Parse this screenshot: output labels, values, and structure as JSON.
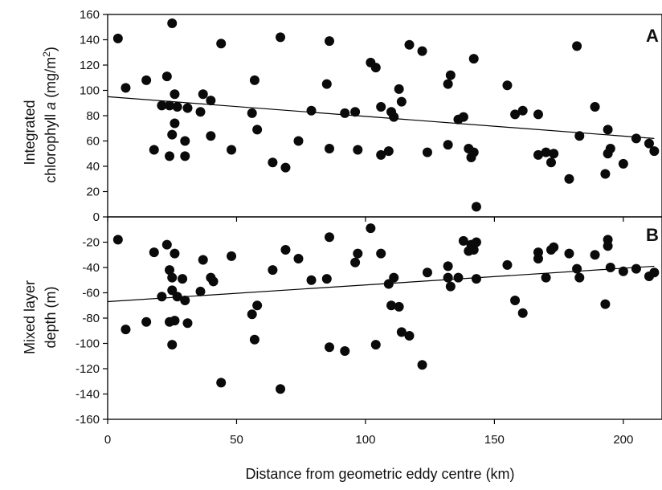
{
  "figure": {
    "xlabel": "Distance from geometric eddy centre (km)"
  },
  "chart_data": [
    {
      "type": "scatter",
      "panel": "A",
      "ylabel_line1": "Integrated",
      "ylabel_line2_prefix": "chlorophyll ",
      "ylabel_line2_italic": "a",
      "ylabel_line2_suffix": " (mg/m",
      "ylabel_superscript": "2",
      "ylabel_close": ")",
      "xlim": [
        0,
        215
      ],
      "ylim": [
        0,
        160
      ],
      "xticks": [
        0,
        50,
        100,
        150,
        200
      ],
      "yticks": [
        0,
        20,
        40,
        60,
        80,
        100,
        120,
        140,
        160
      ],
      "grid": false,
      "trendline": {
        "x": [
          0,
          212
        ],
        "y": [
          95,
          62
        ]
      },
      "points": [
        [
          4,
          141
        ],
        [
          7,
          102
        ],
        [
          15,
          108
        ],
        [
          18,
          53
        ],
        [
          21,
          88
        ],
        [
          23,
          111
        ],
        [
          24,
          48
        ],
        [
          25,
          153
        ],
        [
          24,
          88
        ],
        [
          25,
          65
        ],
        [
          26,
          97
        ],
        [
          26,
          74
        ],
        [
          27,
          87
        ],
        [
          30,
          48
        ],
        [
          30,
          60
        ],
        [
          31,
          86
        ],
        [
          36,
          83
        ],
        [
          37,
          97
        ],
        [
          40,
          92
        ],
        [
          40,
          64
        ],
        [
          44,
          137
        ],
        [
          48,
          53
        ],
        [
          56,
          82
        ],
        [
          57,
          108
        ],
        [
          58,
          69
        ],
        [
          64,
          43
        ],
        [
          67,
          142
        ],
        [
          69,
          39
        ],
        [
          74,
          60
        ],
        [
          79,
          84
        ],
        [
          85,
          105
        ],
        [
          86,
          139
        ],
        [
          86,
          54
        ],
        [
          92,
          82
        ],
        [
          96,
          83
        ],
        [
          97,
          53
        ],
        [
          102,
          122
        ],
        [
          104,
          118
        ],
        [
          106,
          49
        ],
        [
          106,
          87
        ],
        [
          109,
          52
        ],
        [
          110,
          83
        ],
        [
          111,
          79
        ],
        [
          113,
          101
        ],
        [
          114,
          91
        ],
        [
          117,
          136
        ],
        [
          122,
          131
        ],
        [
          124,
          51
        ],
        [
          132,
          57
        ],
        [
          132,
          105
        ],
        [
          133,
          112
        ],
        [
          136,
          77
        ],
        [
          138,
          79
        ],
        [
          140,
          54
        ],
        [
          141,
          47
        ],
        [
          142,
          51
        ],
        [
          142,
          125
        ],
        [
          143,
          8
        ],
        [
          155,
          104
        ],
        [
          158,
          81
        ],
        [
          161,
          84
        ],
        [
          167,
          81
        ],
        [
          167,
          49
        ],
        [
          170,
          51
        ],
        [
          172,
          43
        ],
        [
          173,
          50
        ],
        [
          179,
          30
        ],
        [
          182,
          135
        ],
        [
          183,
          64
        ],
        [
          189,
          87
        ],
        [
          193,
          34
        ],
        [
          194,
          50
        ],
        [
          194,
          69
        ],
        [
          195,
          54
        ],
        [
          200,
          42
        ],
        [
          205,
          62
        ],
        [
          210,
          58
        ],
        [
          212,
          52
        ]
      ]
    },
    {
      "type": "scatter",
      "panel": "B",
      "ylabel_line1": "Mixed layer",
      "ylabel_line2": "depth (m)",
      "xlim": [
        0,
        215
      ],
      "ylim": [
        -160,
        0
      ],
      "xticks": [
        0,
        50,
        100,
        150,
        200
      ],
      "yticks": [
        -160,
        -140,
        -120,
        -100,
        -80,
        -60,
        -40,
        -20
      ],
      "grid": false,
      "trendline": {
        "x": [
          0,
          212
        ],
        "y": [
          -67,
          -39
        ]
      },
      "points": [
        [
          4,
          -18
        ],
        [
          7,
          -89
        ],
        [
          15,
          -83
        ],
        [
          18,
          -28
        ],
        [
          21,
          -63
        ],
        [
          23,
          -22
        ],
        [
          24,
          -42
        ],
        [
          24,
          -83
        ],
        [
          25,
          -101
        ],
        [
          25,
          -58
        ],
        [
          25,
          -48
        ],
        [
          26,
          -29
        ],
        [
          26,
          -82
        ],
        [
          27,
          -63
        ],
        [
          29,
          -49
        ],
        [
          30,
          -66
        ],
        [
          31,
          -84
        ],
        [
          36,
          -59
        ],
        [
          37,
          -34
        ],
        [
          40,
          -48
        ],
        [
          41,
          -51
        ],
        [
          44,
          -131
        ],
        [
          48,
          -31
        ],
        [
          56,
          -77
        ],
        [
          57,
          -97
        ],
        [
          58,
          -70
        ],
        [
          64,
          -42
        ],
        [
          67,
          -136
        ],
        [
          69,
          -26
        ],
        [
          74,
          -33
        ],
        [
          79,
          -50
        ],
        [
          85,
          -49
        ],
        [
          86,
          -16
        ],
        [
          86,
          -103
        ],
        [
          92,
          -106
        ],
        [
          96,
          -36
        ],
        [
          97,
          -29
        ],
        [
          102,
          -9
        ],
        [
          104,
          -101
        ],
        [
          106,
          -29
        ],
        [
          109,
          -53
        ],
        [
          110,
          -70
        ],
        [
          111,
          -48
        ],
        [
          113,
          -71
        ],
        [
          114,
          -91
        ],
        [
          117,
          -94
        ],
        [
          122,
          -117
        ],
        [
          124,
          -44
        ],
        [
          132,
          -39
        ],
        [
          132,
          -48
        ],
        [
          133,
          -55
        ],
        [
          136,
          -48
        ],
        [
          138,
          -19
        ],
        [
          140,
          -27
        ],
        [
          141,
          -22
        ],
        [
          142,
          -26
        ],
        [
          143,
          -49
        ],
        [
          143,
          -20
        ],
        [
          155,
          -38
        ],
        [
          158,
          -66
        ],
        [
          161,
          -76
        ],
        [
          167,
          -28
        ],
        [
          167,
          -33
        ],
        [
          170,
          -48
        ],
        [
          172,
          -26
        ],
        [
          173,
          -24
        ],
        [
          179,
          -29
        ],
        [
          182,
          -41
        ],
        [
          183,
          -48
        ],
        [
          189,
          -30
        ],
        [
          193,
          -69
        ],
        [
          194,
          -18
        ],
        [
          194,
          -23
        ],
        [
          195,
          -40
        ],
        [
          200,
          -43
        ],
        [
          205,
          -41
        ],
        [
          210,
          -47
        ],
        [
          212,
          -44
        ]
      ]
    }
  ]
}
